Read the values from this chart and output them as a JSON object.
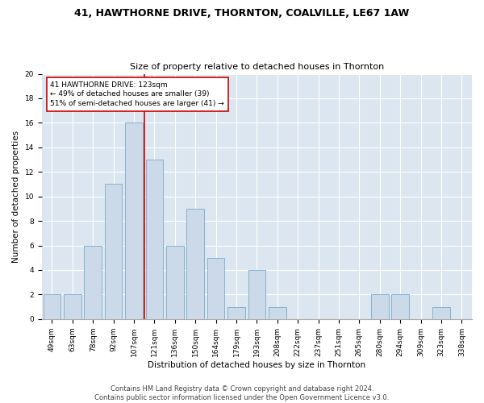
{
  "title1": "41, HAWTHORNE DRIVE, THORNTON, COALVILLE, LE67 1AW",
  "title2": "Size of property relative to detached houses in Thornton",
  "xlabel": "Distribution of detached houses by size in Thornton",
  "ylabel": "Number of detached properties",
  "bins": [
    "49sqm",
    "63sqm",
    "78sqm",
    "92sqm",
    "107sqm",
    "121sqm",
    "136sqm",
    "150sqm",
    "164sqm",
    "179sqm",
    "193sqm",
    "208sqm",
    "222sqm",
    "237sqm",
    "251sqm",
    "265sqm",
    "280sqm",
    "294sqm",
    "309sqm",
    "323sqm",
    "338sqm"
  ],
  "counts": [
    2,
    2,
    6,
    11,
    16,
    13,
    6,
    9,
    5,
    1,
    4,
    1,
    0,
    0,
    0,
    0,
    2,
    2,
    0,
    1,
    0
  ],
  "bar_color": "#ccd9e8",
  "bar_edge_color": "#7aaac8",
  "vline_x_index": 5,
  "vline_color": "#cc0000",
  "annotation_text": "41 HAWTHORNE DRIVE: 123sqm\n← 49% of detached houses are smaller (39)\n51% of semi-detached houses are larger (41) →",
  "annotation_box_color": "white",
  "annotation_box_edge_color": "#cc0000",
  "ylim": [
    0,
    20
  ],
  "yticks": [
    0,
    2,
    4,
    6,
    8,
    10,
    12,
    14,
    16,
    18,
    20
  ],
  "background_color": "#dce6f0",
  "grid_color": "#ffffff",
  "footer": "Contains HM Land Registry data © Crown copyright and database right 2024.\nContains public sector information licensed under the Open Government Licence v3.0.",
  "title1_fontsize": 9,
  "title2_fontsize": 8,
  "xlabel_fontsize": 7.5,
  "ylabel_fontsize": 7.5,
  "tick_fontsize": 6.5,
  "footer_fontsize": 6,
  "annotation_fontsize": 6.5
}
